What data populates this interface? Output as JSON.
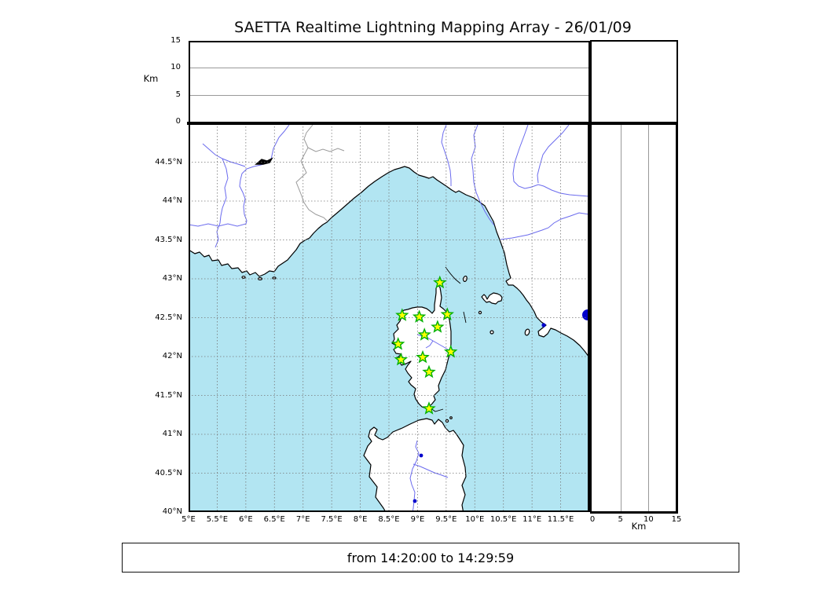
{
  "title": "SAETTA Realtime Lightning Mapping Array - 26/01/09",
  "footer": {
    "text": "from 14:20:00 to 14:29:59"
  },
  "altitude_panel": {
    "ylabel": "Km",
    "ticks": [
      0,
      5,
      10,
      15
    ],
    "range": [
      0,
      15
    ],
    "gridlines": [
      5,
      10
    ]
  },
  "altitude_right_panel": {
    "xlabel": "Km",
    "ticks": [
      0,
      5,
      10,
      15
    ],
    "range": [
      0,
      15
    ],
    "gridlines": [
      5,
      10
    ]
  },
  "map": {
    "lon_range": [
      5,
      12
    ],
    "lat_range": [
      40,
      45
    ],
    "grid_interval_deg": 0.5,
    "lon_ticks": [
      {
        "v": 5,
        "label": "5°E"
      },
      {
        "v": 5.5,
        "label": "5.5°E"
      },
      {
        "v": 6,
        "label": "6°E"
      },
      {
        "v": 6.5,
        "label": "6.5°E"
      },
      {
        "v": 7,
        "label": "7°E"
      },
      {
        "v": 7.5,
        "label": "7.5°E"
      },
      {
        "v": 8,
        "label": "8°E"
      },
      {
        "v": 8.5,
        "label": "8.5°E"
      },
      {
        "v": 9,
        "label": "9°E"
      },
      {
        "v": 9.5,
        "label": "9.5°E"
      },
      {
        "v": 10,
        "label": "10°E"
      },
      {
        "v": 10.5,
        "label": "10.5°E"
      },
      {
        "v": 11,
        "label": "11°E"
      },
      {
        "v": 11.5,
        "label": "11.5°E"
      }
    ],
    "lat_ticks": [
      {
        "v": 44.5,
        "label": "44.5°N"
      },
      {
        "v": 44,
        "label": "44°N"
      },
      {
        "v": 43.5,
        "label": "43.5°N"
      },
      {
        "v": 43,
        "label": "43°N"
      },
      {
        "v": 42.5,
        "label": "42.5°N"
      },
      {
        "v": 42,
        "label": "42°N"
      },
      {
        "v": 41.5,
        "label": "41.5°N"
      },
      {
        "v": 41,
        "label": "41°N"
      },
      {
        "v": 40.5,
        "label": "40.5°N"
      },
      {
        "v": 40,
        "label": "40°N"
      }
    ]
  },
  "stations": [
    {
      "lon": 9.39,
      "lat": 42.95
    },
    {
      "lon": 8.73,
      "lat": 42.53
    },
    {
      "lon": 9.03,
      "lat": 42.51
    },
    {
      "lon": 9.52,
      "lat": 42.54
    },
    {
      "lon": 9.35,
      "lat": 42.38
    },
    {
      "lon": 9.12,
      "lat": 42.28
    },
    {
      "lon": 8.66,
      "lat": 42.16
    },
    {
      "lon": 9.58,
      "lat": 42.06
    },
    {
      "lon": 8.71,
      "lat": 41.96
    },
    {
      "lon": 9.09,
      "lat": 41.99
    },
    {
      "lon": 9.2,
      "lat": 41.8
    },
    {
      "lon": 9.2,
      "lat": 41.33
    }
  ],
  "colors": {
    "sea": "#b2e5f2",
    "land": "#ffffff",
    "coastline": "#000000",
    "river": "#6b6bee",
    "lake": "#0000cc",
    "country_border": "#9a9a9a",
    "grid": "#777777",
    "panel_grid": "#999999",
    "station_fill": "#ffff00",
    "station_edge": "#00b000"
  },
  "chart_data": {
    "type": "scatter",
    "title": "SAETTA Realtime Lightning Mapping Array - 26/01/09",
    "time_window": "from 14:20:00 to 14:29:59",
    "panels": [
      {
        "name": "altitude_vs_longitude",
        "xlim": [
          5,
          12
        ],
        "ylim": [
          0,
          15
        ],
        "ylabel": "Km",
        "yticks": [
          0,
          5,
          10,
          15
        ],
        "grid": [
          5,
          10
        ],
        "points": []
      },
      {
        "name": "plan_view_map",
        "xlim": [
          5,
          12
        ],
        "ylim": [
          40,
          45
        ],
        "xticks": [
          5,
          5.5,
          6,
          6.5,
          7,
          7.5,
          8,
          8.5,
          9,
          9.5,
          10,
          10.5,
          11,
          11.5
        ],
        "yticks": [
          40,
          40.5,
          41,
          41.5,
          42,
          42.5,
          43,
          43.5,
          44,
          44.5
        ],
        "grid": "0.5deg dashed",
        "points": [],
        "station_markers": [
          [
            9.39,
            42.95
          ],
          [
            8.73,
            42.53
          ],
          [
            9.03,
            42.51
          ],
          [
            9.52,
            42.54
          ],
          [
            9.35,
            42.38
          ],
          [
            9.12,
            42.28
          ],
          [
            8.66,
            42.16
          ],
          [
            9.58,
            42.06
          ],
          [
            8.71,
            41.96
          ],
          [
            9.09,
            41.99
          ],
          [
            9.2,
            41.8
          ],
          [
            9.2,
            41.33
          ]
        ]
      },
      {
        "name": "altitude_vs_latitude",
        "xlim": [
          0,
          15
        ],
        "ylim": [
          40,
          45
        ],
        "xlabel": "Km",
        "xticks": [
          0,
          5,
          10,
          15
        ],
        "grid": [
          5,
          10
        ],
        "points": []
      }
    ],
    "legend": "none"
  }
}
